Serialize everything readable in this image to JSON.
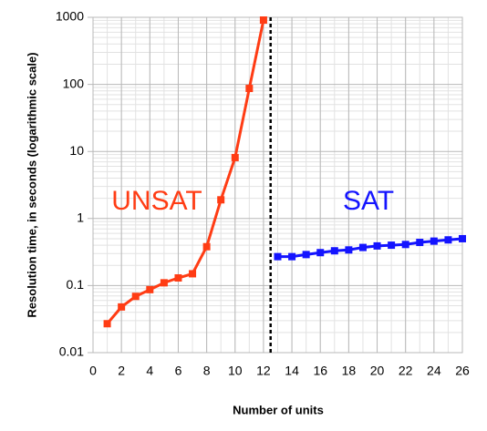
{
  "chart_data": {
    "type": "line",
    "x_label": "Number of units",
    "y_label": "Resolution time, in seconds (logarithmic scale)",
    "log_y": true,
    "grid": true,
    "xlim": [
      0,
      26
    ],
    "xticks": [
      0,
      2,
      4,
      6,
      8,
      10,
      12,
      14,
      16,
      18,
      20,
      22,
      24,
      26
    ],
    "ylim": [
      0.01,
      1000
    ],
    "yticks": [
      0.01,
      0.1,
      1,
      10,
      100,
      1000
    ],
    "divider_x": 12.5,
    "series": [
      {
        "name": "UNSAT",
        "color": "#ff3c14",
        "x": [
          1,
          2,
          3,
          4,
          5,
          6,
          7,
          8,
          9,
          10,
          11,
          12
        ],
        "values": [
          0.027,
          0.048,
          0.069,
          0.087,
          0.11,
          0.13,
          0.15,
          0.38,
          1.9,
          8.1,
          87,
          910
        ]
      },
      {
        "name": "SAT",
        "color": "#1414ff",
        "x": [
          13,
          14,
          15,
          16,
          17,
          18,
          19,
          20,
          21,
          22,
          23,
          24,
          25,
          26
        ],
        "values": [
          0.27,
          0.27,
          0.29,
          0.31,
          0.33,
          0.34,
          0.37,
          0.39,
          0.4,
          0.41,
          0.44,
          0.46,
          0.48,
          0.5
        ]
      }
    ]
  }
}
